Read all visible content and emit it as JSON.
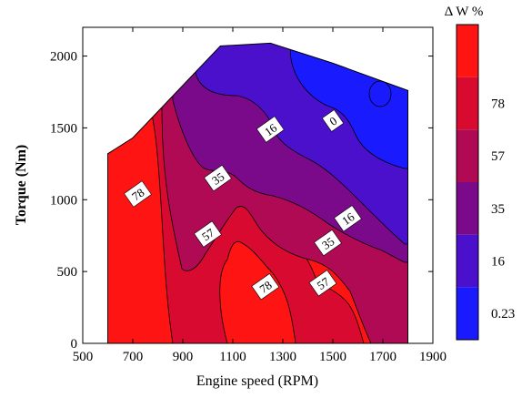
{
  "chart_data": {
    "type": "contour",
    "xlabel": "Engine speed (RPM)",
    "ylabel": "Torque (Nm)",
    "colorbar_title": "Δ W %",
    "xlim": [
      500,
      1900
    ],
    "ylim": [
      0,
      2200
    ],
    "xticks": [
      "500",
      "700",
      "900",
      "1100",
      "1300",
      "1500",
      "1700",
      "1900"
    ],
    "yticks": [
      "0",
      "500",
      "1000",
      "1500",
      "2000"
    ],
    "levels": [
      {
        "value": 0.23,
        "label": "0.23",
        "color": "#1a1aff"
      },
      {
        "value": 16,
        "label": "16",
        "color": "#4a10cc"
      },
      {
        "value": 35,
        "label": "35",
        "color": "#7a0a8a"
      },
      {
        "value": 57,
        "label": "57",
        "color": "#b00a55"
      },
      {
        "value": 78,
        "label": "78",
        "color": "#d80a30"
      },
      {
        "value": 100,
        "label": "",
        "color": "#ff1414"
      }
    ],
    "domain_boundary": [
      [
        600,
        0
      ],
      [
        600,
        1320
      ],
      [
        700,
        1430
      ],
      [
        1050,
        2070
      ],
      [
        1250,
        2090
      ],
      [
        1500,
        1950
      ],
      [
        1800,
        1760
      ],
      [
        1800,
        0
      ]
    ],
    "contour_labels": [
      {
        "text": "0",
        "x": 1500,
        "y": 1550
      },
      {
        "text": "16",
        "x": 1250,
        "y": 1490
      },
      {
        "text": "16",
        "x": 1560,
        "y": 870
      },
      {
        "text": "35",
        "x": 1040,
        "y": 1150
      },
      {
        "text": "35",
        "x": 1480,
        "y": 700
      },
      {
        "text": "57",
        "x": 1000,
        "y": 760
      },
      {
        "text": "57",
        "x": 1460,
        "y": 420
      },
      {
        "text": "78",
        "x": 720,
        "y": 1040
      },
      {
        "text": "78",
        "x": 1230,
        "y": 395
      }
    ]
  }
}
